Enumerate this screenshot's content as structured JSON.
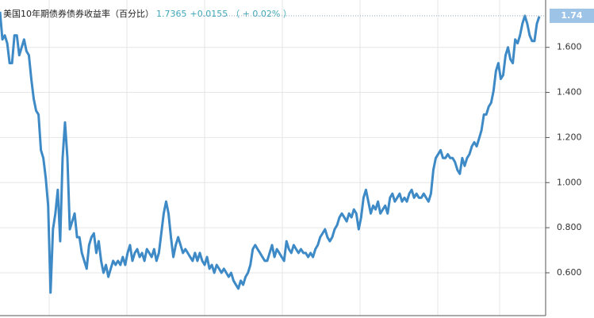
{
  "chart_data": {
    "type": "line",
    "title": "美国10年期债券债券收益率（百分比）",
    "last": "1.7365",
    "change": "+0.0155",
    "change_pct": "（ + 0.02% ）",
    "marker_value": 1.74,
    "color": "#3d8ac6",
    "ylim": [
      0.41,
      1.81
    ],
    "yticks": [
      {
        "value": 0.6,
        "label": "0.600"
      },
      {
        "value": 0.8,
        "label": "0.800"
      },
      {
        "value": 1.0,
        "label": "1.000"
      },
      {
        "value": 1.2,
        "label": "1.200"
      },
      {
        "value": 1.4,
        "label": "1.400"
      },
      {
        "value": 1.6,
        "label": "1.600"
      }
    ],
    "grid": true,
    "values": [
      1.758,
      1.635,
      1.653,
      1.618,
      1.53,
      1.53,
      1.653,
      1.653,
      1.565,
      1.6,
      1.635,
      1.583,
      1.565,
      1.46,
      1.372,
      1.319,
      1.302,
      1.144,
      1.109,
      1.021,
      0.898,
      0.512,
      0.793,
      0.863,
      0.968,
      0.74,
      1.109,
      1.267,
      1.109,
      0.793,
      0.828,
      0.863,
      0.758,
      0.758,
      0.688,
      0.653,
      0.618,
      0.723,
      0.758,
      0.775,
      0.688,
      0.74,
      0.653,
      0.6,
      0.635,
      0.582,
      0.618,
      0.653,
      0.635,
      0.653,
      0.635,
      0.67,
      0.635,
      0.688,
      0.723,
      0.653,
      0.688,
      0.705,
      0.67,
      0.688,
      0.653,
      0.705,
      0.688,
      0.67,
      0.705,
      0.653,
      0.688,
      0.775,
      0.863,
      0.916,
      0.863,
      0.758,
      0.67,
      0.723,
      0.758,
      0.723,
      0.688,
      0.705,
      0.688,
      0.67,
      0.653,
      0.688,
      0.653,
      0.688,
      0.653,
      0.635,
      0.67,
      0.618,
      0.635,
      0.6,
      0.635,
      0.618,
      0.6,
      0.618,
      0.6,
      0.582,
      0.6,
      0.565,
      0.547,
      0.53,
      0.565,
      0.547,
      0.582,
      0.6,
      0.635,
      0.705,
      0.723,
      0.705,
      0.688,
      0.67,
      0.653,
      0.653,
      0.688,
      0.723,
      0.67,
      0.705,
      0.688,
      0.67,
      0.653,
      0.74,
      0.705,
      0.688,
      0.723,
      0.705,
      0.688,
      0.705,
      0.688,
      0.688,
      0.67,
      0.688,
      0.67,
      0.705,
      0.723,
      0.758,
      0.775,
      0.793,
      0.758,
      0.74,
      0.758,
      0.793,
      0.811,
      0.846,
      0.863,
      0.846,
      0.828,
      0.863,
      0.846,
      0.881,
      0.863,
      0.793,
      0.846,
      0.933,
      0.968,
      0.916,
      0.863,
      0.898,
      0.881,
      0.916,
      0.863,
      0.881,
      0.898,
      0.863,
      0.933,
      0.951,
      0.916,
      0.933,
      0.951,
      0.916,
      0.933,
      0.916,
      0.951,
      0.968,
      0.933,
      0.951,
      0.933,
      0.933,
      0.951,
      0.933,
      0.916,
      0.951,
      1.056,
      1.109,
      1.126,
      1.144,
      1.109,
      1.109,
      1.126,
      1.109,
      1.109,
      1.091,
      1.056,
      1.039,
      1.109,
      1.074,
      1.109,
      1.126,
      1.161,
      1.179,
      1.161,
      1.196,
      1.232,
      1.302,
      1.302,
      1.337,
      1.354,
      1.407,
      1.495,
      1.53,
      1.46,
      1.477,
      1.565,
      1.6,
      1.547,
      1.53,
      1.635,
      1.618,
      1.653,
      1.705,
      1.74,
      1.705,
      1.653,
      1.628,
      1.628,
      1.705,
      1.737
    ]
  }
}
